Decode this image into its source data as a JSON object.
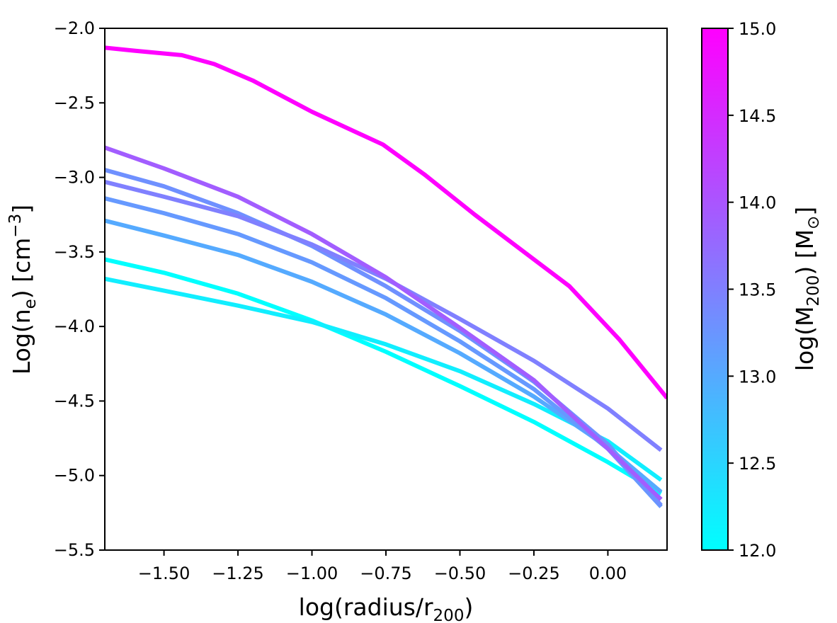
{
  "chart_data": {
    "type": "line",
    "title": "",
    "xlabel": "log(radius/r",
    "xlabel_sub": "200",
    "xlabel_close": ")",
    "ylabel": "Log(n",
    "ylabel_sub": "e",
    "ylabel_mid": ") [cm",
    "ylabel_sup": "−3",
    "ylabel_close": "]",
    "xlim": [
      -1.7,
      0.2
    ],
    "ylim": [
      -5.5,
      -2.0
    ],
    "xticks": [
      -1.5,
      -1.25,
      -1.0,
      -0.75,
      -0.5,
      -0.25,
      0.0
    ],
    "xtick_labels": [
      "−1.50",
      "−1.25",
      "−1.00",
      "−0.75",
      "−0.50",
      "−0.25",
      "0.00"
    ],
    "yticks": [
      -2.0,
      -2.5,
      -3.0,
      -3.5,
      -4.0,
      -4.5,
      -5.0,
      -5.5
    ],
    "ytick_labels": [
      "−2.0",
      "−2.5",
      "−3.0",
      "−3.5",
      "−4.0",
      "−4.5",
      "−5.0",
      "−5.5"
    ],
    "grid": false,
    "colorbar": {
      "label": "log(M",
      "label_sub": "200",
      "label_mid": ")  [M",
      "label_sub2": "⊙",
      "label_close": "]",
      "range": [
        12.0,
        15.0
      ],
      "ticks": [
        12.0,
        12.5,
        13.0,
        13.5,
        14.0,
        14.5,
        15.0
      ],
      "tick_labels": [
        "12.0",
        "12.5",
        "13.0",
        "13.5",
        "14.0",
        "14.5",
        "15.0"
      ],
      "color_low": "#00ffff",
      "color_high": "#ff00ff",
      "colormap": "cool"
    },
    "series": [
      {
        "mass": 12.0,
        "points": [
          [
            -1.7,
            -3.55
          ],
          [
            -1.5,
            -3.64
          ],
          [
            -1.25,
            -3.78
          ],
          [
            -1.0,
            -3.96
          ],
          [
            -0.75,
            -4.17
          ],
          [
            -0.5,
            -4.4
          ],
          [
            -0.25,
            -4.64
          ],
          [
            0.0,
            -4.91
          ],
          [
            0.18,
            -5.12
          ]
        ]
      },
      {
        "mass": 12.2,
        "points": [
          [
            -1.7,
            -3.68
          ],
          [
            -1.5,
            -3.76
          ],
          [
            -1.25,
            -3.86
          ],
          [
            -1.0,
            -3.97
          ],
          [
            -0.75,
            -4.12
          ],
          [
            -0.5,
            -4.3
          ],
          [
            -0.25,
            -4.52
          ],
          [
            0.0,
            -4.77
          ],
          [
            0.18,
            -5.03
          ]
        ]
      },
      {
        "mass": 13.0,
        "points": [
          [
            -1.7,
            -3.29
          ],
          [
            -1.5,
            -3.39
          ],
          [
            -1.25,
            -3.52
          ],
          [
            -1.0,
            -3.7
          ],
          [
            -0.75,
            -3.92
          ],
          [
            -0.5,
            -4.18
          ],
          [
            -0.25,
            -4.47
          ],
          [
            0.0,
            -4.81
          ],
          [
            0.18,
            -5.11
          ]
        ]
      },
      {
        "mass": 13.2,
        "points": [
          [
            -1.7,
            -3.14
          ],
          [
            -1.5,
            -3.24
          ],
          [
            -1.25,
            -3.38
          ],
          [
            -1.0,
            -3.57
          ],
          [
            -0.75,
            -3.81
          ],
          [
            -0.5,
            -4.1
          ],
          [
            -0.25,
            -4.42
          ],
          [
            0.0,
            -4.82
          ],
          [
            0.18,
            -5.21
          ]
        ]
      },
      {
        "mass": 13.3,
        "points": [
          [
            -1.7,
            -2.95
          ],
          [
            -1.5,
            -3.06
          ],
          [
            -1.25,
            -3.24
          ],
          [
            -1.0,
            -3.46
          ],
          [
            -0.75,
            -3.73
          ],
          [
            -0.5,
            -4.03
          ],
          [
            -0.25,
            -4.37
          ],
          [
            0.0,
            -4.79
          ],
          [
            0.18,
            -5.2
          ]
        ]
      },
      {
        "mass": 13.5,
        "points": [
          [
            -1.7,
            -3.03
          ],
          [
            -1.5,
            -3.13
          ],
          [
            -1.25,
            -3.26
          ],
          [
            -1.0,
            -3.45
          ],
          [
            -0.75,
            -3.68
          ],
          [
            -0.5,
            -3.95
          ],
          [
            -0.25,
            -4.23
          ],
          [
            0.0,
            -4.55
          ],
          [
            0.18,
            -4.83
          ]
        ]
      },
      {
        "mass": 13.9,
        "points": [
          [
            -1.7,
            -2.8
          ],
          [
            -1.5,
            -2.94
          ],
          [
            -1.25,
            -3.13
          ],
          [
            -1.0,
            -3.38
          ],
          [
            -0.75,
            -3.67
          ],
          [
            -0.5,
            -4.01
          ],
          [
            -0.25,
            -4.36
          ],
          [
            0.0,
            -4.82
          ],
          [
            0.18,
            -5.16
          ]
        ]
      },
      {
        "mass": 15.0,
        "points": [
          [
            -1.7,
            -2.13
          ],
          [
            -1.6,
            -2.15
          ],
          [
            -1.44,
            -2.18
          ],
          [
            -1.33,
            -2.24
          ],
          [
            -1.2,
            -2.35
          ],
          [
            -1.0,
            -2.56
          ],
          [
            -0.76,
            -2.78
          ],
          [
            -0.62,
            -2.98
          ],
          [
            -0.45,
            -3.25
          ],
          [
            -0.13,
            -3.73
          ],
          [
            0.04,
            -4.09
          ],
          [
            0.2,
            -4.48
          ]
        ]
      }
    ]
  }
}
